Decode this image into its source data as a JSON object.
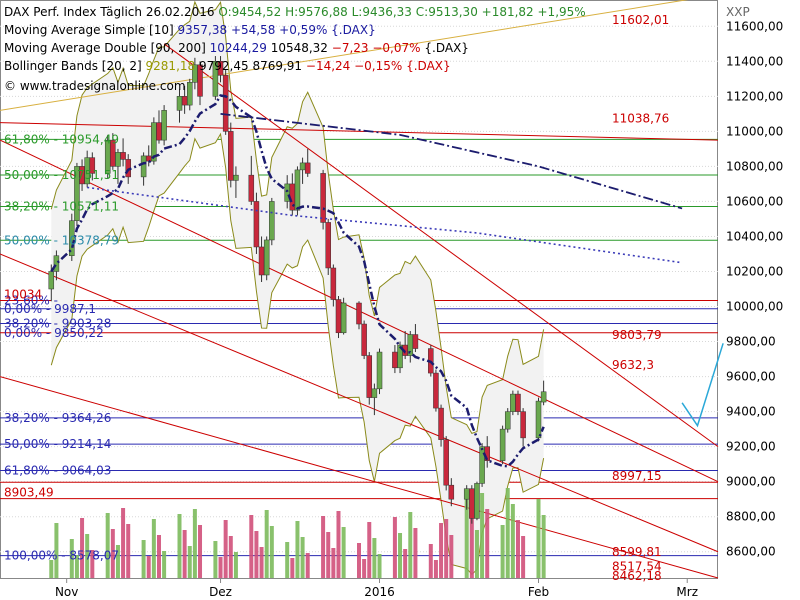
{
  "header": {
    "title": "DAX Perf. Index Täglich",
    "date": "26.02.2016",
    "ohlc": "O:9454,52 H:9576,88 L:9436,33",
    "close": "C:9513,30 +181,82 +1,95%",
    "sma_label": "Moving Average Simple [10]",
    "sma_values": "9357,38 +54,58 +0,59% {.DAX}",
    "mad_label": "Moving Average Double [90, 200]",
    "mad_v1": "10244,29",
    "mad_v2": "10548,32",
    "mad_chg": "−7,23 −0,07%",
    "mad_suffix": "{.DAX}",
    "bb_label": "Bollinger Bands [20, 2]",
    "bb_v1": "9281,18",
    "bb_v2": "9792,45",
    "bb_v3": "8769,91",
    "bb_chg": "−14,24 −0,15% {.DAX}",
    "copyright": "© www.tradesignalonline.com"
  },
  "axis": {
    "symbol": "XXP",
    "y_ticks": [
      "11600,00",
      "11400,00",
      "11200,00",
      "11000,00",
      "10800,00",
      "10600,00",
      "10400,00",
      "10200,00",
      "10000,00",
      "9800,00",
      "9600,00",
      "9400,00",
      "9200,00",
      "9000,00",
      "8800,00",
      "8600,00"
    ],
    "x_ticks": [
      "Nov",
      "Dez",
      "2016",
      "Feb",
      "Mrz"
    ]
  },
  "annotations": {
    "fib_top": [
      "61,80% - 10954,49",
      "50,00% - 10751,51",
      "38,20% - 10571,11",
      "50,00% - 10378,79",
      "23,60% - ",
      "0,00% - 9987,1"
    ],
    "fib_bottom": [
      "38,20% - 9903,28",
      "0,00% - 9850,22",
      "38,20% - 9364,26",
      "50,00% - 9214,14",
      "61,80% - 9064,03",
      "100,00% - 8578,07"
    ],
    "levels_red": [
      "10034",
      "8903,49",
      "11038,76",
      "8997,15",
      "9632,3",
      "9803,79",
      "11602,01"
    ],
    "levels_bottom": [
      "8599,81",
      "8517,54",
      "8462,18"
    ]
  },
  "colors": {
    "bull": "#6aa84f",
    "bear": "#c8283c",
    "sma": "#1c1c6e",
    "bollinger": "#8a8a1a",
    "redline": "#cc0000",
    "fib_green": "#2a9a2a",
    "fib_blue": "#2a2ab0",
    "forecast": "#2aa8d8"
  },
  "chart_data": {
    "type": "candlestick",
    "title": "DAX Perf. Index Täglich",
    "y_range": [
      8450,
      11750
    ],
    "x_range": [
      "2015-10-19",
      "2016-03-07"
    ],
    "series": [
      {
        "name": "DAX",
        "values": [
          [
            10100,
            10240,
            10030,
            10200
          ],
          [
            10200,
            10320,
            10150,
            10290
          ],
          [
            10290,
            10530,
            10260,
            10490
          ],
          [
            10490,
            10820,
            10460,
            10800
          ],
          [
            10800,
            10840,
            10660,
            10700
          ],
          [
            10700,
            10890,
            10680,
            10850
          ],
          [
            10850,
            10880,
            10720,
            10760
          ],
          [
            10760,
            10980,
            10730,
            10950
          ],
          [
            10950,
            10990,
            10780,
            10800
          ],
          [
            10800,
            10900,
            10700,
            10880
          ],
          [
            10880,
            10960,
            10800,
            10840
          ],
          [
            10840,
            10870,
            10700,
            10740
          ],
          [
            10740,
            10880,
            10690,
            10860
          ],
          [
            10860,
            10920,
            10800,
            10830
          ],
          [
            10830,
            11080,
            10810,
            11050
          ],
          [
            11050,
            11120,
            10930,
            10950
          ],
          [
            10950,
            11150,
            10920,
            11120
          ],
          [
            11120,
            11240,
            11050,
            11200
          ],
          [
            11200,
            11260,
            11100,
            11150
          ],
          [
            11150,
            11300,
            11120,
            11280
          ],
          [
            11280,
            11420,
            11240,
            11380
          ],
          [
            11380,
            11400,
            11150,
            11200
          ],
          [
            11200,
            11430,
            11180,
            11400
          ],
          [
            11400,
            11430,
            11280,
            11320
          ],
          [
            11320,
            11350,
            10980,
            11000
          ],
          [
            11000,
            11050,
            10680,
            10720
          ],
          [
            10720,
            10800,
            10620,
            10750
          ],
          [
            10750,
            10860,
            10580,
            10600
          ],
          [
            10600,
            10650,
            10300,
            10340
          ],
          [
            10340,
            10400,
            10140,
            10180
          ],
          [
            10180,
            10400,
            10150,
            10380
          ],
          [
            10380,
            10620,
            10350,
            10600
          ],
          [
            10600,
            10750,
            10560,
            10700
          ],
          [
            10700,
            10760,
            10520,
            10550
          ],
          [
            10550,
            10800,
            10520,
            10780
          ],
          [
            10780,
            10850,
            10700,
            10820
          ],
          [
            10820,
            10900,
            10740,
            10760
          ],
          [
            10760,
            10780,
            10440,
            10480
          ],
          [
            10480,
            10500,
            10180,
            10220
          ],
          [
            10220,
            10240,
            10000,
            10040
          ],
          [
            10040,
            10060,
            9820,
            9850
          ],
          [
            9850,
            10050,
            9840,
            10020
          ],
          [
            10020,
            10030,
            9870,
            9900
          ],
          [
            9900,
            9920,
            9700,
            9720
          ],
          [
            9720,
            9740,
            9440,
            9480
          ],
          [
            9480,
            9560,
            9380,
            9530
          ],
          [
            9530,
            9760,
            9500,
            9740
          ],
          [
            9740,
            9780,
            9620,
            9650
          ],
          [
            9650,
            9800,
            9620,
            9780
          ],
          [
            9780,
            9860,
            9700,
            9720
          ],
          [
            9720,
            9860,
            9680,
            9840
          ],
          [
            9840,
            9900,
            9740,
            9760
          ],
          [
            9760,
            9780,
            9600,
            9620
          ],
          [
            9620,
            9640,
            9400,
            9420
          ],
          [
            9420,
            9440,
            9200,
            9240
          ],
          [
            9240,
            9260,
            8950,
            8980
          ],
          [
            8980,
            9020,
            8860,
            8900
          ],
          [
            8900,
            8980,
            8840,
            8960
          ],
          [
            8960,
            8980,
            8760,
            8790
          ],
          [
            8790,
            9000,
            8780,
            8990
          ],
          [
            8990,
            9220,
            8970,
            9200
          ],
          [
            9200,
            9260,
            9080,
            9120
          ],
          [
            9120,
            9320,
            9100,
            9300
          ],
          [
            9300,
            9420,
            9280,
            9400
          ],
          [
            9400,
            9520,
            9380,
            9500
          ],
          [
            9500,
            9520,
            9380,
            9400
          ],
          [
            9400,
            9420,
            9200,
            9250
          ],
          [
            9250,
            9480,
            9230,
            9460
          ],
          [
            9454.52,
            9576.88,
            9436.33,
            9513.3
          ]
        ]
      }
    ]
  }
}
